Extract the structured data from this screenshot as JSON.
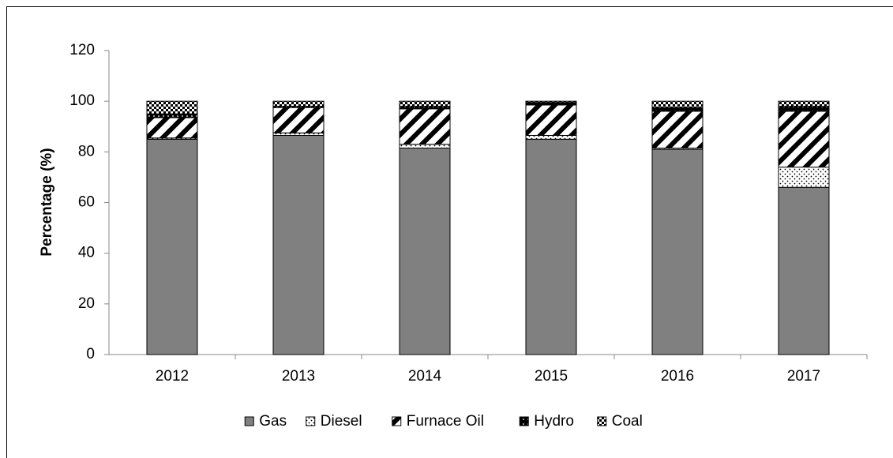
{
  "chart_data": {
    "type": "stacked_bar",
    "y_label": "Percentage (%)",
    "categories": [
      "2012",
      "2013",
      "2014",
      "2015",
      "2016",
      "2017"
    ],
    "series": [
      {
        "name": "Gas",
        "color": "#808080",
        "pattern": "solid",
        "values": [
          85,
          86.5,
          81.5,
          85,
          81,
          66
        ]
      },
      {
        "name": "Diesel",
        "color": "#000000",
        "pattern": "dots",
        "values": [
          0.5,
          1,
          1.5,
          1.5,
          0.5,
          8
        ]
      },
      {
        "name": "Furnace Oil",
        "color": "#000000",
        "pattern": "stripes",
        "values": [
          8,
          10,
          14,
          12,
          14.5,
          22
        ]
      },
      {
        "name": "Hydro",
        "color": "#000000",
        "pattern": "dark-dots",
        "values": [
          1.5,
          0.5,
          1,
          1,
          1.5,
          2
        ]
      },
      {
        "name": "Coal",
        "color": "#000000",
        "pattern": "checker",
        "values": [
          5,
          2,
          2,
          0.5,
          2.5,
          2
        ]
      }
    ],
    "ylim": [
      0,
      120
    ],
    "yticks": [
      0,
      20,
      40,
      60,
      80,
      100,
      120
    ],
    "grid": false,
    "legend": "bottom"
  }
}
